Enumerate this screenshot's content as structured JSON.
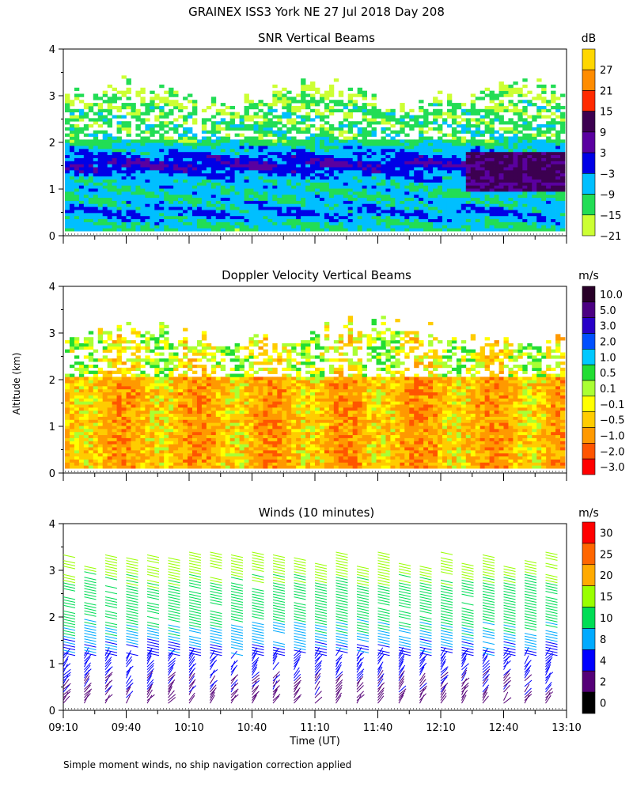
{
  "figure": {
    "title": "GRAINEX ISS3 York NE  27 Jul 2018 Day 208",
    "ylabel": "Altitude (km)",
    "xlabel": "Time (UT)",
    "footnote": "Simple moment winds, no ship navigation correction applied"
  },
  "chart_data": [
    {
      "type": "heatmap",
      "title": "SNR Vertical Beams",
      "x_range": [
        "09:10",
        "13:10"
      ],
      "y_range": [
        0,
        4
      ],
      "y_ticks": [
        "0",
        "1",
        "2",
        "3",
        "4"
      ],
      "x_tick_labels": [],
      "colorbar": {
        "unit": "dB",
        "labels": [
          "27",
          "21",
          "15",
          "9",
          "3",
          "−3",
          "−9",
          "−15",
          "−21"
        ],
        "colors": [
          "#ffd700",
          "#ff8c00",
          "#ff2a00",
          "#3c0050",
          "#5a00a0",
          "#0000e6",
          "#00bfff",
          "#22dd55",
          "#ccff33"
        ]
      },
      "layers_km": [
        {
          "alt": 0.2,
          "dB": -12
        },
        {
          "alt": 0.45,
          "dB": -6
        },
        {
          "alt": 0.8,
          "dB": -12
        },
        {
          "alt": 1.15,
          "dB": -10
        },
        {
          "alt": 1.5,
          "dB": 0
        },
        {
          "alt": 2.0,
          "dB": -14
        },
        {
          "alt": 2.6,
          "dB": -16
        },
        {
          "alt": 3.0,
          "dB": -19
        }
      ]
    },
    {
      "type": "heatmap",
      "title": "Doppler Velocity Vertical Beams",
      "x_range": [
        "09:10",
        "13:10"
      ],
      "y_range": [
        0,
        4
      ],
      "y_ticks": [
        "0",
        "1",
        "2",
        "3",
        "4"
      ],
      "x_tick_labels": [],
      "colorbar": {
        "unit": "m/s",
        "labels": [
          "10.0",
          "5.0",
          "3.0",
          "2.0",
          "1.0",
          "0.5",
          "0.1",
          "−0.1",
          "−0.5",
          "−1.0",
          "−2.0",
          "−3.0"
        ],
        "colors": [
          "#280028",
          "#4b0082",
          "#2800c8",
          "#0050ff",
          "#00c8ff",
          "#22dd33",
          "#aaff33",
          "#ffff00",
          "#ffcc00",
          "#ff9900",
          "#ff5500",
          "#ff0000"
        ]
      },
      "typical_velocity_ms": {
        "below_2km": -0.5,
        "above_2km": 0.1
      }
    },
    {
      "type": "wind-barbs",
      "title": "Winds (10 minutes)",
      "x_range": [
        "09:10",
        "13:10"
      ],
      "y_range": [
        0,
        4
      ],
      "y_ticks": [
        "0",
        "1",
        "2",
        "3",
        "4"
      ],
      "x_tick_labels": [
        "09:10",
        "09:40",
        "10:10",
        "10:40",
        "11:10",
        "11:40",
        "12:10",
        "12:40",
        "13:10"
      ],
      "colorbar": {
        "unit": "m/s",
        "labels": [
          "30",
          "25",
          "20",
          "15",
          "10",
          "8",
          "4",
          "2",
          "0"
        ],
        "colors": [
          "#ff0000",
          "#ff6600",
          "#ffaa00",
          "#99ff00",
          "#00dd55",
          "#00aaff",
          "#0000ff",
          "#550077",
          "#000000"
        ]
      },
      "profile_times": [
        "09:10",
        "09:20",
        "09:30",
        "09:40",
        "09:50",
        "10:00",
        "10:10",
        "10:20",
        "10:30",
        "10:40",
        "10:50",
        "11:00",
        "11:10",
        "11:20",
        "11:30",
        "11:40",
        "11:50",
        "12:00",
        "12:10",
        "12:20",
        "12:30",
        "12:40",
        "12:50",
        "13:00"
      ],
      "speed_profile_ms": [
        {
          "alt_km": 0.2,
          "speed": 3
        },
        {
          "alt_km": 0.6,
          "speed": 4
        },
        {
          "alt_km": 1.0,
          "speed": 6
        },
        {
          "alt_km": 1.4,
          "speed": 8
        },
        {
          "alt_km": 1.8,
          "speed": 10
        },
        {
          "alt_km": 2.2,
          "speed": 12
        },
        {
          "alt_km": 2.6,
          "speed": 14
        },
        {
          "alt_km": 3.0,
          "speed": 16
        },
        {
          "alt_km": 3.4,
          "speed": 18
        }
      ]
    }
  ]
}
